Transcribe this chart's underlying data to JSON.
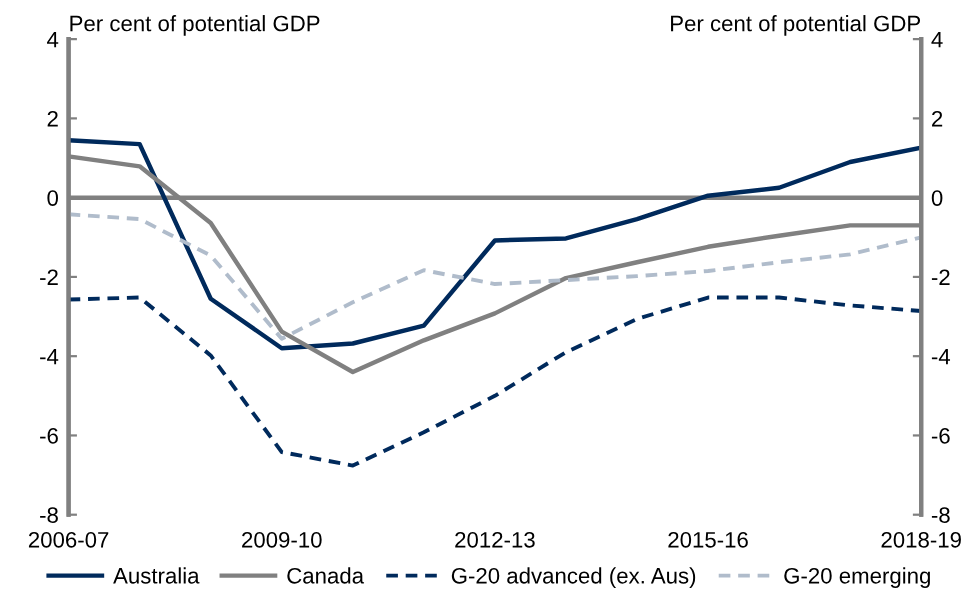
{
  "chart_data": {
    "type": "line",
    "ylabel": "Per cent of potential GDP",
    "y2label": "Per cent of potential GDP",
    "categories": [
      "2006-07",
      null,
      null,
      "2009-10",
      null,
      null,
      "2012-13",
      null,
      null,
      "2015-16",
      null,
      null,
      "2018-19"
    ],
    "series": [
      {
        "name": "Australia",
        "color": "#002a5c",
        "line_style": "solid",
        "values": [
          1.45,
          1.35,
          -2.55,
          -3.8,
          -3.68,
          -3.23,
          -1.08,
          -1.03,
          -0.54,
          0.05,
          0.25,
          0.9,
          1.26
        ]
      },
      {
        "name": "Canada",
        "color": "#808080",
        "line_style": "solid",
        "values": [
          1.04,
          0.79,
          -0.64,
          -3.38,
          -4.4,
          -3.6,
          -2.92,
          -2.03,
          -1.63,
          -1.24,
          -0.96,
          -0.7,
          -0.7
        ]
      },
      {
        "name": "G-20 advanced (ex. Aus)",
        "color": "#002a5c",
        "line_style": "dashed",
        "values": [
          -2.57,
          -2.52,
          -3.98,
          -6.42,
          -6.76,
          -5.92,
          -5.0,
          -3.9,
          -3.06,
          -2.52,
          -2.52,
          -2.72,
          -2.86
        ]
      },
      {
        "name": "G-20 emerging",
        "color": "#b0bccb",
        "line_style": "dashed",
        "values": [
          -0.42,
          -0.54,
          -1.46,
          -3.56,
          -2.64,
          -1.83,
          -2.18,
          -2.08,
          -1.98,
          -1.85,
          -1.63,
          -1.43,
          -1.0
        ]
      }
    ],
    "ylim": [
      -8,
      4
    ],
    "yticks": [
      -8,
      -6,
      -4,
      -2,
      0,
      2,
      4
    ],
    "y2lim": [
      -8,
      4
    ],
    "y2ticks": [
      -8,
      -6,
      -4,
      -2,
      0,
      2,
      4
    ],
    "ref_lines": [
      {
        "axis": "y",
        "value": 0,
        "color": "#808080"
      }
    ],
    "grid": false,
    "legend": "bottom",
    "marker": "none"
  }
}
